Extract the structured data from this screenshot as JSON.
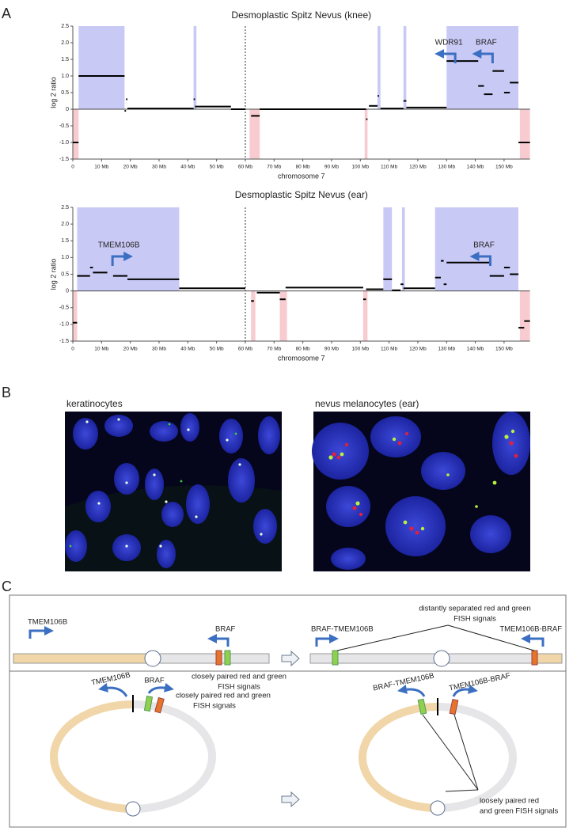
{
  "panel_labels": [
    "A",
    "B",
    "C"
  ],
  "chart_data": [
    {
      "type": "segments",
      "title": "Desmoplastic Spitz Nevus (knee)",
      "x_label": "chromosome 7",
      "y_label": "log 2 ratio",
      "xlim": [
        0,
        159
      ],
      "ylim": [
        -1.5,
        2.5
      ],
      "yticks": [
        2.5,
        {
          "value": 2,
          "label": "2.0"
        },
        1.5,
        {
          "value": 1,
          "label": "1.0"
        },
        0.5,
        0,
        -0.5,
        {
          "value": -1,
          "label": "-1.0"
        },
        -1.5
      ],
      "xticks": [
        0,
        {
          "value": 10,
          "label": "10 Mb"
        },
        {
          "value": 20,
          "label": "20 Mb"
        },
        {
          "value": 30,
          "label": "30 Mb"
        },
        {
          "value": 40,
          "label": "40 Mb"
        },
        {
          "value": 50,
          "label": "50 Mb"
        },
        {
          "value": 60,
          "label": "60 Mb"
        },
        {
          "value": 70,
          "label": "70 Mb"
        },
        {
          "value": 80,
          "label": "80 Mb"
        },
        {
          "value": 90,
          "label": "90 Mb"
        },
        {
          "value": 100,
          "label": "100 Mb"
        },
        {
          "value": 110,
          "label": "110 Mb"
        },
        {
          "value": 120,
          "label": "120 Mb"
        },
        {
          "value": 130,
          "label": "130 Mb"
        },
        {
          "value": 140,
          "label": "140 Mb"
        },
        {
          "value": 150,
          "label": "150 Mb"
        }
      ],
      "gain_color": "#c9c9f6",
      "loss_color": "#f8cbd0",
      "segment_color": "#000000",
      "annotation_color": "#3b6fc2",
      "centromere": 60,
      "gain_regions": [
        [
          2,
          18
        ],
        [
          42,
          43
        ],
        [
          106,
          107
        ],
        [
          115,
          116
        ],
        [
          130,
          155
        ]
      ],
      "loss_regions": [
        [
          0,
          2
        ],
        [
          61.5,
          65
        ],
        [
          101.5,
          102.5
        ],
        [
          155.5,
          159
        ]
      ],
      "segments": {
        "start": [
          0,
          2,
          18,
          18.5,
          19,
          42,
          42.5,
          55,
          62,
          65,
          102,
          103,
          106,
          107,
          115,
          116,
          130,
          141,
          143,
          146,
          150,
          152,
          155
        ],
        "end": [
          2,
          18,
          18.5,
          19,
          42,
          42.5,
          55,
          60,
          65,
          102,
          102.5,
          106,
          106.5,
          115,
          116,
          130,
          141,
          143,
          146,
          150,
          152,
          155,
          159
        ],
        "values": [
          -1.0,
          1.0,
          -0.05,
          0.3,
          0.02,
          0.3,
          0.08,
          0.0,
          -0.2,
          0.0,
          -0.3,
          0.1,
          0.4,
          0.02,
          0.25,
          0.05,
          1.45,
          0.7,
          0.45,
          1.15,
          0.5,
          0.8,
          -1.0
        ]
      },
      "annotations": [
        {
          "label": "WDR91",
          "x": 130.8,
          "direction": "left"
        },
        {
          "label": "BRAF",
          "x": 143.8,
          "direction": "left"
        }
      ]
    },
    {
      "type": "segments",
      "title": "Desmoplastic Spitz Nevus (ear)",
      "x_label": "chromosome 7",
      "y_label": "log 2 ratio",
      "xlim": [
        0,
        159
      ],
      "ylim": [
        -1.5,
        2.5
      ],
      "yticks": [
        2.5,
        {
          "value": 2,
          "label": "2.0"
        },
        1.5,
        {
          "value": 1,
          "label": "1.0"
        },
        0.5,
        0,
        -0.5,
        {
          "value": -1,
          "label": "-1.0"
        },
        -1.5
      ],
      "xticks": [
        0,
        {
          "value": 10,
          "label": "10 Mb"
        },
        {
          "value": 20,
          "label": "20 Mb"
        },
        {
          "value": 30,
          "label": "30 Mb"
        },
        {
          "value": 40,
          "label": "40 Mb"
        },
        {
          "value": 50,
          "label": "50 Mb"
        },
        {
          "value": 60,
          "label": "60 Mb"
        },
        {
          "value": 70,
          "label": "70 Mb"
        },
        {
          "value": 80,
          "label": "80 Mb"
        },
        {
          "value": 90,
          "label": "90 Mb"
        },
        {
          "value": 100,
          "label": "100 Mb"
        },
        {
          "value": 110,
          "label": "110 Mb"
        },
        {
          "value": 120,
          "label": "120 Mb"
        },
        {
          "value": 130,
          "label": "130 Mb"
        },
        {
          "value": 140,
          "label": "140 Mb"
        },
        {
          "value": 150,
          "label": "150 Mb"
        }
      ],
      "gain_color": "#c9c9f6",
      "loss_color": "#f8cbd0",
      "segment_color": "#000000",
      "annotation_color": "#3b6fc2",
      "centromere": 60,
      "gain_regions": [
        [
          1.5,
          37
        ],
        [
          108,
          111
        ],
        [
          114.5,
          115.5
        ],
        [
          126,
          155
        ]
      ],
      "loss_regions": [
        [
          0,
          1.5
        ],
        [
          62,
          63.5
        ],
        [
          72,
          74.5
        ],
        [
          101,
          102.5
        ],
        [
          155.5,
          159
        ]
      ],
      "segments": {
        "start": [
          0,
          1.5,
          6,
          7,
          14,
          19,
          37,
          62,
          64,
          72,
          74,
          101,
          102,
          108,
          111,
          114,
          115,
          126,
          128,
          129,
          130,
          145,
          150,
          152,
          155,
          157
        ],
        "end": [
          1.5,
          6,
          7,
          12,
          19,
          37,
          60,
          63,
          72,
          74,
          101,
          102,
          108,
          111,
          114,
          115,
          126,
          128,
          129,
          130,
          145,
          150,
          152,
          155,
          157,
          159
        ],
        "values": [
          -0.95,
          0.45,
          0.7,
          0.55,
          0.45,
          0.35,
          0.08,
          -0.3,
          -0.05,
          -0.25,
          0.1,
          -0.25,
          0.05,
          0.35,
          0.02,
          0.2,
          0.08,
          0.4,
          0.9,
          0.2,
          0.85,
          0.45,
          0.7,
          0.5,
          -1.1,
          -0.9
        ]
      },
      "annotations": [
        {
          "label": "TMEM106B",
          "x": 16,
          "direction": "right"
        },
        {
          "label": "BRAF",
          "x": 143,
          "direction": "left"
        }
      ]
    }
  ],
  "panel_b": {
    "images": [
      {
        "caption": "keratinocytes"
      },
      {
        "caption": "nevus melanocytes (ear)"
      }
    ]
  },
  "panel_c": {
    "top": {
      "before": {
        "genes": [
          "TMEM106B",
          "BRAF"
        ],
        "note": [
          "closely paired red and green",
          "FISH signals"
        ]
      },
      "after": {
        "genes": [
          "BRAF-TMEM106B",
          "TMEM106B-BRAF"
        ],
        "note": [
          "distantly separated red and green",
          "FISH signals"
        ]
      }
    },
    "bottom": {
      "before": {
        "genes": [
          "TMEM106B",
          "BRAF"
        ],
        "note": [
          "closely paired red and green",
          "FISH signals"
        ]
      },
      "after": {
        "genes": [
          "BRAF-TMEM106B",
          "TMEM106B-BRAF"
        ],
        "note": [
          "loosely paired red",
          "and green FISH signals"
        ]
      }
    }
  }
}
